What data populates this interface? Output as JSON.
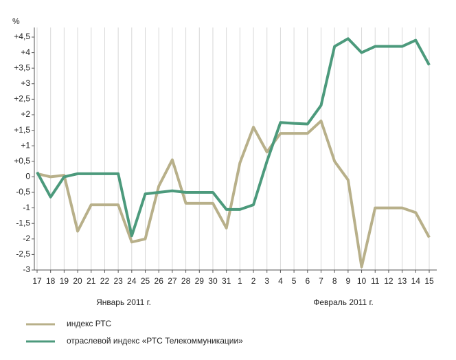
{
  "chart_data": {
    "type": "line",
    "y_unit": "%",
    "categories": [
      "17",
      "18",
      "19",
      "20",
      "21",
      "22",
      "23",
      "24",
      "25",
      "26",
      "27",
      "28",
      "29",
      "30",
      "31",
      "1",
      "2",
      "3",
      "4",
      "5",
      "6",
      "7",
      "8",
      "9",
      "10",
      "11",
      "12",
      "13",
      "14",
      "15"
    ],
    "group_labels": [
      "Январь 2011 г.",
      "Февраль 2011 г."
    ],
    "series": [
      {
        "name": "индекс РТС",
        "color": "#b8b08a",
        "values": [
          0.1,
          0,
          0.05,
          -1.75,
          -0.9,
          -0.9,
          -0.9,
          -2.1,
          -2.0,
          -0.3,
          0.55,
          -0.85,
          -0.85,
          -0.85,
          -1.65,
          0.45,
          1.6,
          0.8,
          1.4,
          1.4,
          1.4,
          1.8,
          0.5,
          -0.1,
          -2.9,
          -1.0,
          -1.0,
          -1.0,
          -1.15,
          -1.95
        ]
      },
      {
        "name": "отраслевой индекс «РТС Телекоммуникации»",
        "color": "#4c9a7c",
        "values": [
          0.15,
          -0.65,
          0,
          0.1,
          0.1,
          0.1,
          0.1,
          -1.9,
          -0.55,
          -0.5,
          -0.45,
          -0.5,
          -0.5,
          -0.5,
          -1.05,
          -1.05,
          -0.9,
          0.5,
          1.75,
          1.72,
          1.7,
          2.3,
          4.2,
          4.45,
          4.0,
          4.2,
          4.2,
          4.2,
          4.4,
          3.6
        ]
      }
    ],
    "ylim": [
      -3,
      4.5
    ],
    "yticks": [
      -3,
      {
        "value": -2.5,
        "label": "-2,5"
      },
      -2,
      {
        "value": -1.5,
        "label": "-1,5"
      },
      -1,
      {
        "value": -0.5,
        "label": "-0,5"
      },
      0,
      {
        "value": 0.5,
        "label": "+0,5"
      },
      {
        "value": 1,
        "label": "+1"
      },
      {
        "value": 1.5,
        "label": "+1,5"
      },
      {
        "value": 2,
        "label": "+2"
      },
      {
        "value": 2.5,
        "label": "+2,5"
      },
      {
        "value": 3,
        "label": "+3"
      },
      {
        "value": 3.5,
        "label": "+3,5"
      },
      {
        "value": 4,
        "label": "+4"
      },
      {
        "value": 4.5,
        "label": "+4,5"
      }
    ],
    "grid": "vertical"
  }
}
